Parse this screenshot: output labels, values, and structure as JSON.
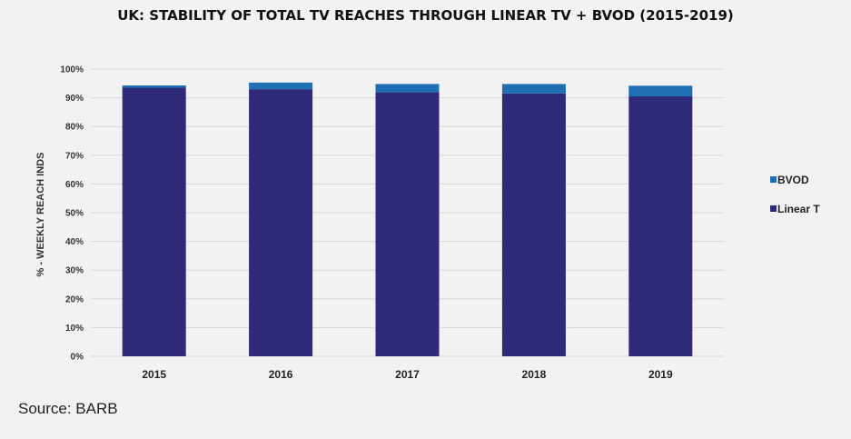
{
  "chart_data": {
    "type": "bar",
    "stacked": true,
    "title": "UK: STABILITY OF TOTAL TV REACHES THROUGH LINEAR TV + BVOD (2015-2019)",
    "ylabel": "% - WEEKLY REACH INDS",
    "xlabel": "",
    "categories": [
      "2015",
      "2016",
      "2017",
      "2018",
      "2019"
    ],
    "yticks": [
      "0%",
      "10%",
      "20%",
      "30%",
      "40%",
      "50%",
      "60%",
      "70%",
      "80%",
      "90%",
      "100%"
    ],
    "ylim": [
      0,
      100
    ],
    "grid": true,
    "legend": "right",
    "series": [
      {
        "name": "Linear T",
        "color": "#2e2a78",
        "values": [
          93.5,
          93.0,
          92.0,
          91.5,
          90.5
        ]
      },
      {
        "name": "BVOD",
        "color": "#1f6fb4",
        "values": [
          0.8,
          2.3,
          2.8,
          3.3,
          3.7
        ]
      }
    ],
    "legend_order": [
      "BVOD",
      "Linear T"
    ]
  },
  "source": "Source: BARB"
}
